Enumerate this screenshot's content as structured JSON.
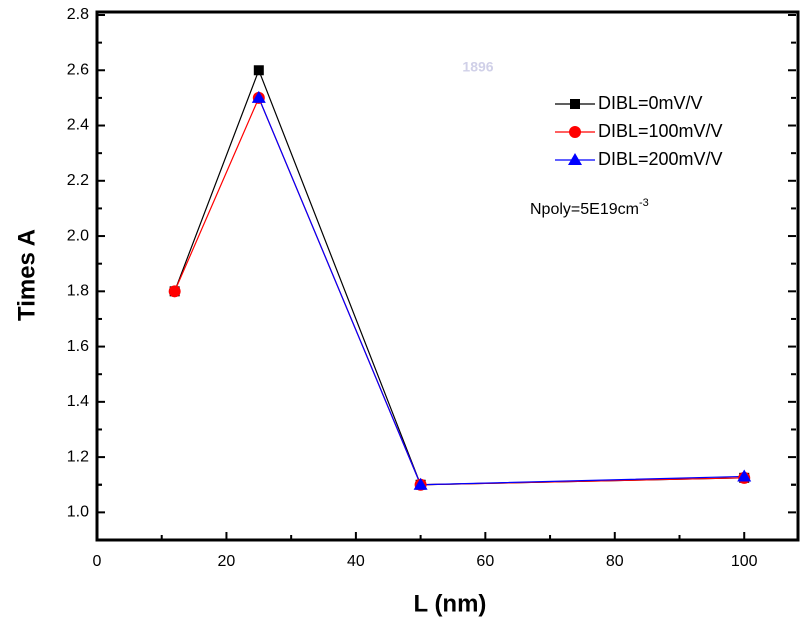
{
  "chart_data": {
    "type": "line",
    "x_label": "L (nm)",
    "y_label": "Times A",
    "x": [
      12,
      25,
      50,
      100
    ],
    "series": [
      {
        "name": "DIBL=0mV/V",
        "color": "#000000",
        "marker": "square",
        "values": [
          1.8,
          2.6,
          1.1,
          1.125
        ]
      },
      {
        "name": "DIBL=100mV/V",
        "color": "#ff0000",
        "marker": "circle",
        "values": [
          1.8,
          2.5,
          1.1,
          1.125
        ]
      },
      {
        "name": "DIBL=200mV/V",
        "color": "#0000ff",
        "marker": "triangle",
        "values": [
          null,
          2.5,
          1.1,
          1.13
        ]
      }
    ],
    "annotation": {
      "text": "Npoly=5E19cm",
      "superscript": "-3"
    },
    "watermark": "1896",
    "xlim": [
      0,
      108
    ],
    "xticks": [
      0,
      20,
      40,
      60,
      80,
      100
    ],
    "ylim": [
      0.9,
      2.8
    ],
    "yticks": [
      {
        "value": 1.0,
        "label": "1.0"
      },
      1.2,
      1.4,
      1.6,
      1.8,
      {
        "value": 2.0,
        "label": "2.0"
      },
      2.2,
      2.4,
      2.6,
      2.8
    ],
    "grid": false,
    "legend": "upper right"
  }
}
